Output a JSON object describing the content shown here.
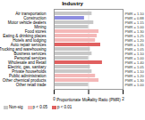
{
  "chart_data": {
    "type": "bar",
    "orientation": "horizontal",
    "title": "Industry",
    "x_label": "Proportionate Mortality Ratio (PMR)",
    "categories": [
      "Air transportation",
      "Construction",
      "Motor vehicle dealers",
      "Mining",
      "Food stores",
      "Eating & drinking places",
      "Hotels and lodging",
      "Auto repair services",
      "Trucking and warehousing",
      "Business services",
      "Personal services",
      "Wholesale and Retail",
      "Electric, gas, sanitary",
      "Private households",
      "Public administration",
      "Other chemical products",
      "Other retail trade"
    ],
    "values": [
      1.1,
      0.88,
      1.15,
      1.0,
      1.3,
      1.25,
      1.2,
      1.35,
      1.05,
      1.1,
      1.0,
      1.4,
      1.05,
      1.1,
      1.2,
      1.3,
      1.0
    ],
    "value_labels": [
      "PMR = 1.10",
      "PMR = 0.88",
      "PMR = 1.15",
      "PMR = 1.00",
      "PMR = 1.30",
      "PMR = 1.25",
      "PMR = 1.20",
      "PMR = 1.35",
      "PMR = 1.05",
      "PMR = 1.10",
      "PMR = 1.00",
      "PMR = 1.40",
      "PMR = 1.05",
      "PMR = 1.10",
      "PMR = 1.20",
      "PMR = 1.30",
      "PMR = 1.00"
    ],
    "colors": [
      "#c8c8c8",
      "#8c8ce0",
      "#c8c8c8",
      "#c8c8c8",
      "#f4b8b8",
      "#f4b8b8",
      "#f4b8b8",
      "#e06060",
      "#c8c8c8",
      "#c8c8c8",
      "#c8c8c8",
      "#e06060",
      "#c8c8c8",
      "#c8c8c8",
      "#f4b8b8",
      "#f4b8b8",
      "#c8c8c8"
    ],
    "data_labels": true,
    "xlim": [
      0,
      2
    ],
    "xticks": [
      0,
      1,
      2
    ],
    "grid": true,
    "legend": "bottom-left",
    "legend_items": [
      {
        "name": "Non-sig",
        "color": "#c8c8c8"
      },
      {
        "name": "p < 0.05",
        "color": "#f4b8b8"
      },
      {
        "name": "p < 0.01",
        "color": "#e06060"
      }
    ]
  }
}
